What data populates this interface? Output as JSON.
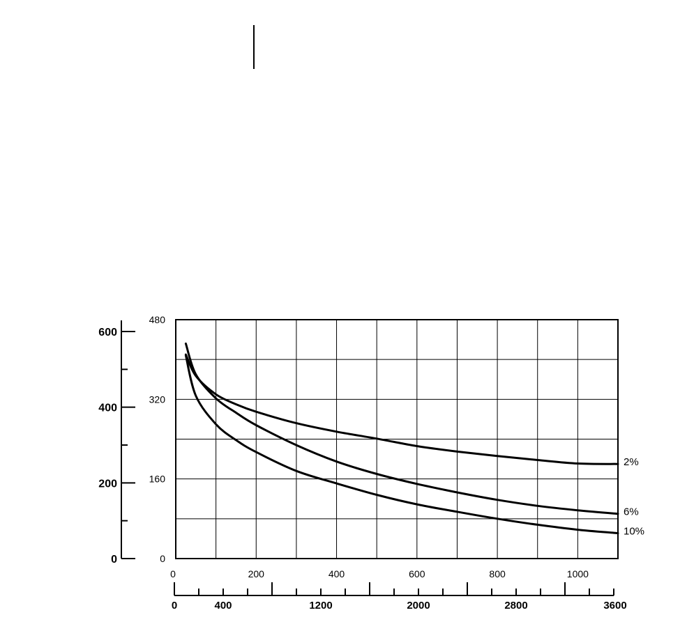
{
  "chart_data": {
    "type": "line",
    "title": "",
    "xlabel": "",
    "ylabel": "",
    "grid": true,
    "x_axis": {
      "range": [
        0,
        1100
      ],
      "ticks": [
        "0",
        "200",
        "400",
        "600",
        "800",
        "1000"
      ],
      "tick_values": [
        0,
        200,
        400,
        600,
        800,
        1000
      ]
    },
    "x_axis_secondary": {
      "range": [
        0,
        3600
      ],
      "ticks": [
        "0",
        "400",
        "1200",
        "2000",
        "2800",
        "3600"
      ],
      "tick_values": [
        0,
        400,
        1200,
        2000,
        2800,
        3600
      ]
    },
    "y_axis": {
      "range": [
        0,
        480
      ],
      "ticks": [
        "0",
        "160",
        "320",
        "480"
      ],
      "tick_values": [
        0,
        160,
        320,
        480
      ]
    },
    "y_axis_secondary": {
      "range": [
        0,
        600
      ],
      "ticks": [
        "0",
        "200",
        "400",
        "600"
      ],
      "tick_values": [
        0,
        200,
        400,
        600
      ]
    },
    "series": [
      {
        "name": "2%",
        "points": [
          [
            25,
            410
          ],
          [
            50,
            367
          ],
          [
            100,
            330
          ],
          [
            150,
            310
          ],
          [
            200,
            295
          ],
          [
            300,
            272
          ],
          [
            400,
            255
          ],
          [
            500,
            241
          ],
          [
            600,
            226
          ],
          [
            700,
            215
          ],
          [
            800,
            206
          ],
          [
            900,
            198
          ],
          [
            1000,
            191
          ],
          [
            1100,
            190
          ]
        ]
      },
      {
        "name": "6%",
        "points": [
          [
            25,
            432
          ],
          [
            50,
            370
          ],
          [
            100,
            322
          ],
          [
            150,
            293
          ],
          [
            200,
            268
          ],
          [
            300,
            228
          ],
          [
            400,
            195
          ],
          [
            500,
            170
          ],
          [
            600,
            150
          ],
          [
            700,
            133
          ],
          [
            800,
            118
          ],
          [
            900,
            106
          ],
          [
            1000,
            97
          ],
          [
            1100,
            90
          ]
        ]
      },
      {
        "name": "10%",
        "points": [
          [
            25,
            408
          ],
          [
            50,
            327
          ],
          [
            100,
            270
          ],
          [
            150,
            238
          ],
          [
            200,
            214
          ],
          [
            300,
            176
          ],
          [
            400,
            151
          ],
          [
            500,
            128
          ],
          [
            600,
            109
          ],
          [
            700,
            94
          ],
          [
            800,
            80
          ],
          [
            900,
            68
          ],
          [
            1000,
            58
          ],
          [
            1100,
            51
          ]
        ]
      }
    ]
  }
}
